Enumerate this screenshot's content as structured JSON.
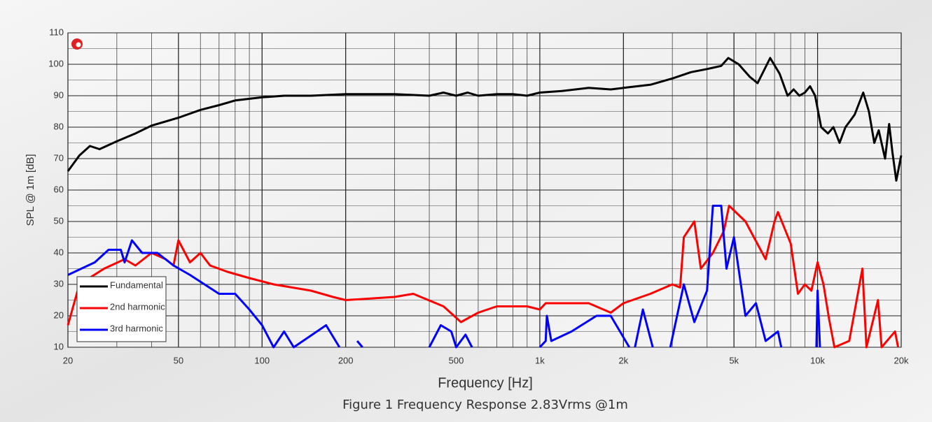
{
  "chart_data": {
    "type": "line",
    "x_label": "Frequency [Hz]",
    "y_label": "SPL @ 1m [dB]",
    "caption": "Figure 1 Frequency Response 2.83Vrms @1m",
    "x_scale": "log",
    "xlim": [
      20,
      20000
    ],
    "xticks": [
      20,
      50,
      100,
      200,
      500,
      {
        "value": 1000,
        "label": "1k"
      },
      {
        "value": 2000,
        "label": "2k"
      },
      {
        "value": 5000,
        "label": "5k"
      },
      {
        "value": 10000,
        "label": "10k"
      },
      {
        "value": 20000,
        "label": "20k"
      }
    ],
    "ylim": [
      10,
      110
    ],
    "yticks": [
      10,
      20,
      30,
      40,
      50,
      60,
      70,
      80,
      90,
      100,
      110
    ],
    "grid": true,
    "legend": "lower left",
    "series": [
      {
        "name": "Fundamental",
        "color": "#000000",
        "x": [
          20,
          22,
          24,
          26,
          30,
          35,
          40,
          50,
          60,
          70,
          80,
          100,
          120,
          150,
          200,
          300,
          400,
          450,
          500,
          550,
          600,
          700,
          800,
          900,
          1000,
          1200,
          1500,
          1800,
          2000,
          2500,
          3000,
          3500,
          4000,
          4500,
          4770,
          5200,
          5700,
          6080,
          6750,
          7300,
          7800,
          8200,
          8600,
          9000,
          9400,
          9800,
          10300,
          10900,
          11400,
          12000,
          12600,
          13100,
          13600,
          14600,
          15300,
          16000,
          16600,
          17500,
          18100,
          18600,
          19200,
          20000
        ],
        "values": [
          66,
          71,
          74,
          73,
          75.5,
          78,
          80.5,
          83,
          85.5,
          87,
          88.5,
          89.5,
          90,
          90,
          90.5,
          90.5,
          90,
          91,
          90,
          91,
          90,
          90.5,
          90.5,
          90,
          91,
          91.5,
          92.5,
          92,
          92.5,
          93.5,
          95.5,
          97.5,
          98.5,
          99.5,
          102,
          100,
          96,
          94,
          102,
          97,
          90,
          92,
          90,
          91,
          93,
          90,
          80,
          78,
          80,
          75,
          80,
          82,
          84,
          91,
          85,
          75,
          79,
          70,
          81,
          72,
          63,
          71
        ]
      },
      {
        "name": "2nd harmonic",
        "color": "#ff0000",
        "x": [
          20,
          22,
          27,
          32,
          35,
          40,
          45,
          48,
          50,
          55,
          60,
          65,
          75,
          90,
          110,
          150,
          180,
          200,
          300,
          350,
          450,
          520,
          600,
          700,
          900,
          1000,
          1050,
          1500,
          1800,
          2000,
          2500,
          3000,
          3200,
          3300,
          3600,
          3800,
          4200,
          4600,
          4800,
          5500,
          6500,
          7000,
          7200,
          8000,
          8500,
          9000,
          9500,
          10000,
          10500,
          11000,
          11500,
          13000,
          14500,
          15000,
          16500,
          17000,
          19000,
          19500
        ],
        "values": [
          17,
          30,
          35,
          38,
          36,
          40,
          38,
          36,
          44,
          37,
          40,
          36,
          34,
          32,
          30,
          28,
          26,
          25,
          26,
          27,
          23,
          18,
          21,
          23,
          23,
          22,
          24,
          24,
          21,
          24,
          27,
          30,
          29,
          45,
          50,
          35,
          40,
          47,
          55,
          50,
          38,
          50,
          53,
          43,
          27,
          30,
          28,
          37,
          30,
          19,
          10,
          12,
          35,
          10,
          25,
          10,
          15,
          10
        ]
      },
      {
        "name": "3rd harmonic",
        "color": "#0000ff",
        "x": [
          20,
          25,
          28,
          31,
          32,
          34,
          37,
          42,
          48,
          55,
          70,
          80,
          90,
          100,
          110,
          120,
          130,
          170,
          190,
          195,
          220,
          230,
          240,
          400,
          440,
          480,
          500,
          540,
          570,
          600,
          1000,
          1050,
          1060,
          1100,
          1300,
          1600,
          1800,
          2100,
          2150,
          2200,
          2350,
          2550,
          2700,
          2950,
          3300,
          3600,
          4000,
          4200,
          4500,
          4700,
          5000,
          5500,
          6000,
          6500,
          7200,
          7400,
          7600,
          9900,
          10000,
          10200
        ],
        "values": [
          33,
          37,
          41,
          41,
          37,
          44,
          40,
          40,
          36,
          33,
          27,
          27,
          22,
          17,
          10,
          15,
          10,
          17,
          10,
          null,
          12,
          10,
          null,
          10,
          17,
          15,
          10,
          14,
          10,
          null,
          10,
          12,
          20,
          12,
          15,
          20,
          20,
          10,
          null,
          10,
          22,
          10,
          null,
          10,
          30,
          18,
          28,
          55,
          55,
          35,
          45,
          20,
          24,
          12,
          15,
          10,
          null,
          10,
          28,
          10
        ]
      }
    ]
  }
}
